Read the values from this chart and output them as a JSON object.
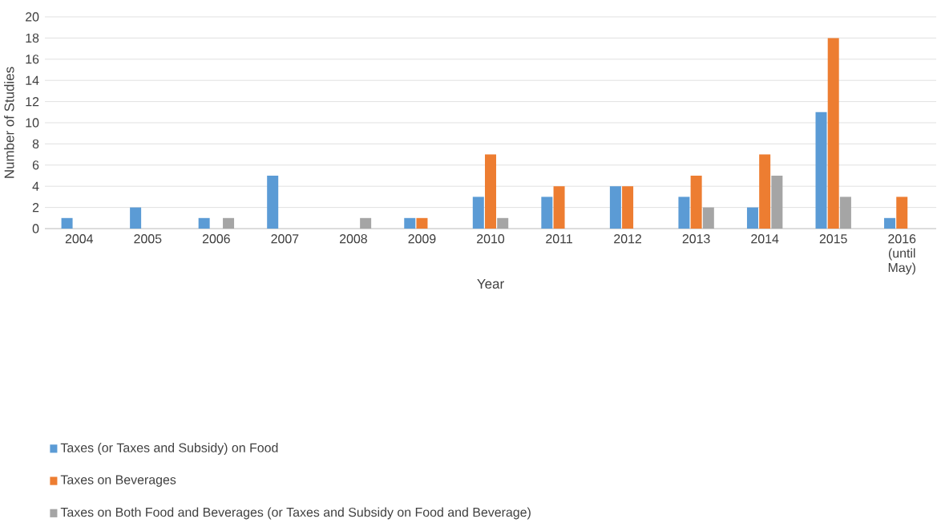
{
  "chart_data": {
    "type": "bar",
    "xlabel": "Year",
    "ylabel": "Number of Studies",
    "categories": [
      "2004",
      "2005",
      "2006",
      "2007",
      "2008",
      "2009",
      "2010",
      "2011",
      "2012",
      "2013",
      "2014",
      "2015",
      "2016 (until May)"
    ],
    "series": [
      {
        "name": "Taxes (or Taxes and Subsidy) on Food",
        "color": "#5b9bd5",
        "values": [
          1,
          2,
          1,
          5,
          0,
          1,
          3,
          3,
          4,
          3,
          2,
          11,
          1
        ]
      },
      {
        "name": "Taxes on Beverages",
        "color": "#ed7d31",
        "values": [
          0,
          0,
          0,
          0,
          0,
          1,
          7,
          4,
          4,
          5,
          7,
          18,
          3
        ]
      },
      {
        "name": "Taxes on Both Food and Beverages (or Taxes and Subsidy on Food and Beverage)",
        "color": "#a5a5a5",
        "values": [
          0,
          0,
          1,
          0,
          1,
          0,
          1,
          0,
          0,
          2,
          5,
          3,
          0
        ]
      }
    ],
    "ylim": [
      0,
      20
    ],
    "yticks": [
      0,
      2,
      4,
      6,
      8,
      10,
      12,
      14,
      16,
      18,
      20
    ],
    "grid": "y",
    "legend": "bottom"
  }
}
